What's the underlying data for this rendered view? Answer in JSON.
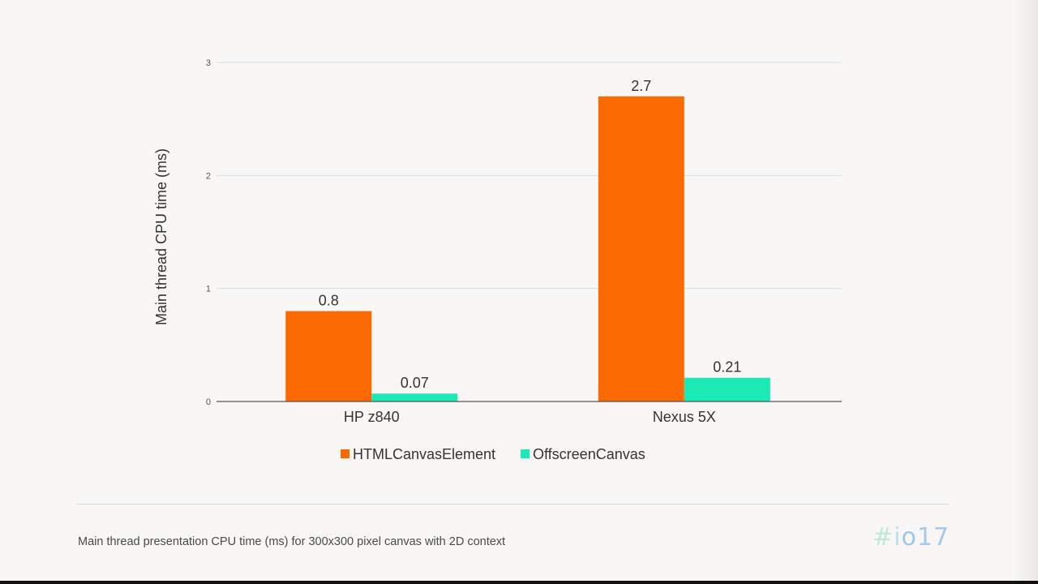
{
  "chart_data": {
    "type": "bar",
    "categories": [
      "HP z840",
      "Nexus 5X"
    ],
    "series": [
      {
        "name": "HTMLCanvasElement",
        "values": [
          0.8,
          2.7
        ],
        "labels": [
          "0.8",
          "2.7"
        ],
        "color": "#fb6a00"
      },
      {
        "name": "OffscreenCanvas",
        "values": [
          0.07,
          0.21
        ],
        "labels": [
          "0.07",
          "0.21"
        ],
        "color": "#1de9b6"
      }
    ],
    "title": "",
    "xlabel": "",
    "ylabel": "Main thread CPU time (ms)",
    "ylim": [
      0,
      3
    ],
    "yticks": [
      0,
      1,
      2,
      3
    ],
    "grid": true,
    "legend": "bottom-center"
  },
  "footer": {
    "caption": "Main thread presentation CPU time (ms) for 300x300 pixel canvas with 2D context",
    "brand_hash": "#",
    "brand_i": "i",
    "brand_o": "o",
    "brand_seven": "17"
  }
}
